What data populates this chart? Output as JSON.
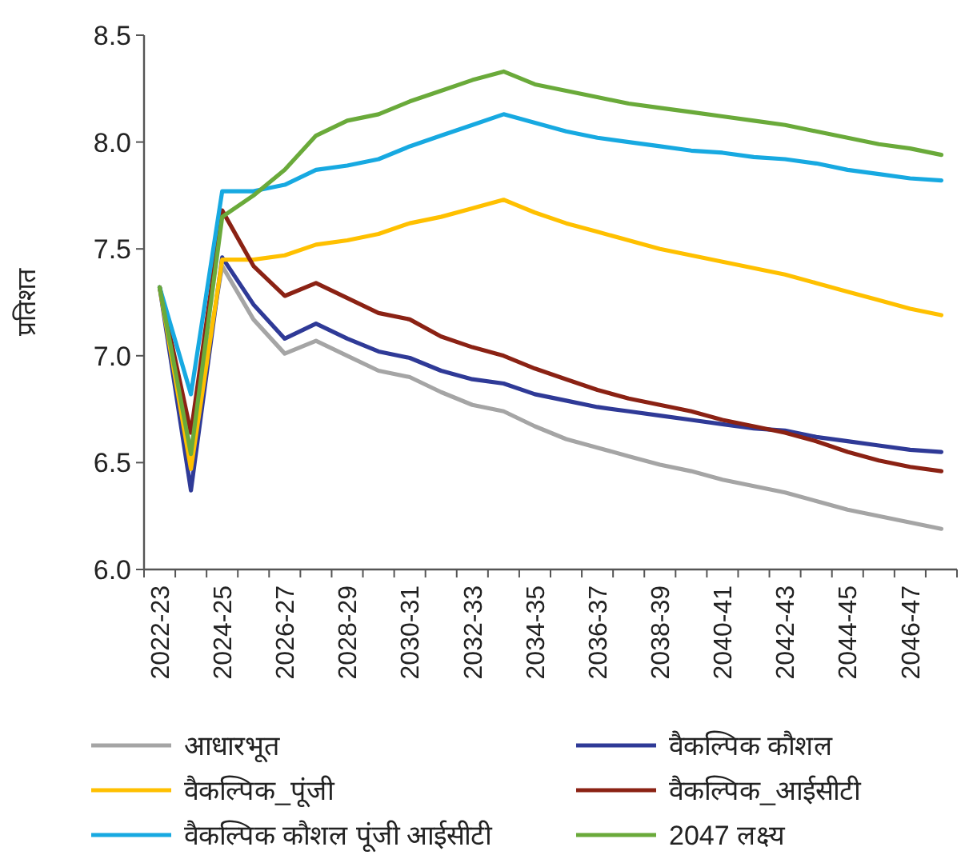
{
  "chart_data": {
    "type": "line",
    "ylabel": "प्रतिशत",
    "categories": [
      "2022-23",
      null,
      "2024-25",
      null,
      "2026-27",
      null,
      "2028-29",
      null,
      "2030-31",
      null,
      "2032-33",
      null,
      "2034-35",
      null,
      "2036-37",
      null,
      "2038-39",
      null,
      "2040-41",
      null,
      "2042-43",
      null,
      "2044-45",
      null,
      "2046-47",
      null
    ],
    "ylim": [
      6.0,
      8.5
    ],
    "yticks": [
      {
        "value": 6.0,
        "label": "6.0"
      },
      {
        "value": 6.5,
        "label": "6.5"
      },
      {
        "value": 7.0,
        "label": "7.0"
      },
      {
        "value": 7.5,
        "label": "7.5"
      },
      {
        "value": 8.0,
        "label": "8.0"
      },
      {
        "value": 8.5,
        "label": "8.5"
      }
    ],
    "grid": false,
    "legend": "bottom",
    "marker": "none",
    "line_style": "solid",
    "series": [
      {
        "name": "आधारभूत",
        "color": "#a5a5a5",
        "values": [
          7.32,
          6.55,
          7.42,
          7.17,
          7.01,
          7.07,
          7.0,
          6.93,
          6.9,
          6.83,
          6.77,
          6.74,
          6.67,
          6.61,
          6.57,
          6.53,
          6.49,
          6.46,
          6.42,
          6.39,
          6.36,
          6.32,
          6.28,
          6.25,
          6.22,
          6.19
        ]
      },
      {
        "name": "वैकल्पिक कौशल",
        "color": "#2f3a97",
        "values": [
          7.32,
          6.37,
          7.46,
          7.24,
          7.08,
          7.15,
          7.08,
          7.02,
          6.99,
          6.93,
          6.89,
          6.87,
          6.82,
          6.79,
          6.76,
          6.74,
          6.72,
          6.7,
          6.68,
          6.66,
          6.65,
          6.62,
          6.6,
          6.58,
          6.56,
          6.55
        ]
      },
      {
        "name": "वैकल्पिक_पूंजी",
        "color": "#ffc000",
        "values": [
          7.32,
          6.47,
          7.45,
          7.45,
          7.47,
          7.52,
          7.54,
          7.57,
          7.62,
          7.65,
          7.69,
          7.73,
          7.67,
          7.62,
          7.58,
          7.54,
          7.5,
          7.47,
          7.44,
          7.41,
          7.38,
          7.34,
          7.3,
          7.26,
          7.22,
          7.19
        ]
      },
      {
        "name": "वैकल्पिक_आईसीटी",
        "color": "#8b2214",
        "values": [
          7.32,
          6.64,
          7.68,
          7.42,
          7.28,
          7.34,
          7.27,
          7.2,
          7.17,
          7.09,
          7.04,
          7.0,
          6.94,
          6.89,
          6.84,
          6.8,
          6.77,
          6.74,
          6.7,
          6.67,
          6.64,
          6.6,
          6.55,
          6.51,
          6.48,
          6.46
        ]
      },
      {
        "name": "वैकल्पिक  कौशल  पूंजी  आईसीटी",
        "color": "#17a9e1",
        "values": [
          7.32,
          6.82,
          7.77,
          7.77,
          7.8,
          7.87,
          7.89,
          7.92,
          7.98,
          8.03,
          8.08,
          8.13,
          8.09,
          8.05,
          8.02,
          8.0,
          7.98,
          7.96,
          7.95,
          7.93,
          7.92,
          7.9,
          7.87,
          7.85,
          7.83,
          7.82
        ]
      },
      {
        "name": "2047 लक्ष्य",
        "color": "#6aaa3a",
        "values": [
          7.32,
          6.54,
          7.65,
          7.75,
          7.87,
          8.03,
          8.1,
          8.13,
          8.19,
          8.24,
          8.29,
          8.33,
          8.27,
          8.24,
          8.21,
          8.18,
          8.16,
          8.14,
          8.12,
          8.1,
          8.08,
          8.05,
          8.02,
          7.99,
          7.97,
          7.94
        ]
      }
    ]
  }
}
